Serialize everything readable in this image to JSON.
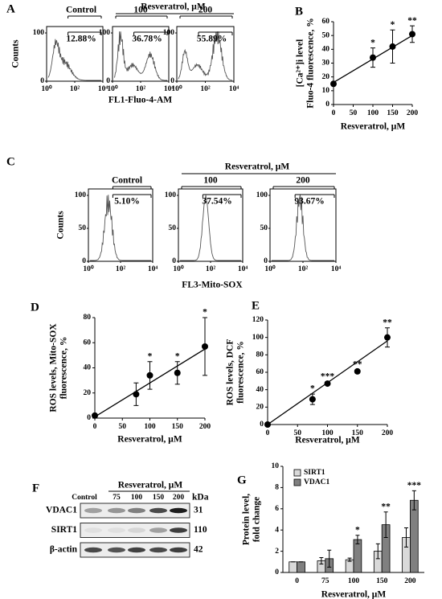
{
  "panels": [
    "A",
    "B",
    "C",
    "D",
    "E",
    "F",
    "G"
  ],
  "flow": [
    {
      "ylabel": "Counts",
      "xlabel": "FL1-Fluo-4-AM",
      "treatment": "Resveratrol, μM",
      "ylim": [
        0,
        100
      ],
      "yticks": [
        0,
        100
      ],
      "xlim": [
        1,
        10000
      ],
      "xticks": [
        {
          "value": 1,
          "label": "10⁰"
        },
        {
          "value": 100,
          "label": "10²"
        },
        {
          "value": 10000,
          "label": "10⁴"
        }
      ],
      "samples": [
        {
          "label": "Control",
          "gate": "12.88%"
        },
        {
          "label": "100",
          "gate": "36.78%"
        },
        {
          "label": "200",
          "gate": "55.89%"
        }
      ]
    },
    {
      "ylabel": "Counts",
      "xlabel": "FL3-Mito-SOX",
      "treatment": "Resveratrol, μM",
      "ylim": [
        0,
        100
      ],
      "yticks": [
        0,
        50,
        100
      ],
      "xlim": [
        1,
        10000
      ],
      "xticks": [
        {
          "value": 1,
          "label": "10⁰"
        },
        {
          "value": 100,
          "label": "10²"
        },
        {
          "value": 10000,
          "label": "10⁴"
        }
      ],
      "samples": [
        {
          "label": "Control",
          "gate": "5.10%"
        },
        {
          "label": "100",
          "gate": "37.54%"
        },
        {
          "label": "200",
          "gate": "93.67%"
        }
      ]
    }
  ],
  "chart_data": [
    {
      "type": "scatter",
      "ylabel": [
        "[Ca²⁺]i level",
        "Fluo-4 fluorescence, %"
      ],
      "xlabel": "Resveratrol, μM",
      "x": [
        0,
        100,
        150,
        200
      ],
      "values": [
        15,
        34,
        42,
        51
      ],
      "errors": [
        1,
        7,
        12,
        6
      ],
      "significance": [
        null,
        "*",
        "*",
        "**"
      ],
      "trend": {
        "x": [
          0,
          200
        ],
        "values": [
          16,
          50
        ]
      },
      "xlim": [
        0,
        200
      ],
      "xticks": [
        0,
        50,
        100,
        150,
        200
      ],
      "ylim": [
        0,
        60
      ],
      "yticks": [
        0,
        10,
        20,
        30,
        40,
        50,
        60
      ],
      "color": "#000000"
    },
    {
      "type": "scatter",
      "ylabel": [
        "ROS levels, Mito-SOX",
        "fluorescence, %"
      ],
      "xlabel": "Resveratrol, μM",
      "x": [
        0,
        75,
        100,
        150,
        200
      ],
      "values": [
        2,
        19,
        34,
        36,
        57
      ],
      "errors": [
        1,
        9,
        11,
        9,
        23
      ],
      "significance": [
        null,
        null,
        "*",
        "*",
        "*"
      ],
      "trend": {
        "x": [
          0,
          200
        ],
        "values": [
          1,
          55
        ]
      },
      "xlim": [
        0,
        200
      ],
      "xticks": [
        0,
        50,
        100,
        150,
        200
      ],
      "ylim": [
        0,
        80
      ],
      "yticks": [
        0,
        20,
        40,
        60,
        80
      ],
      "color": "#000000"
    },
    {
      "type": "scatter",
      "ylabel": [
        "ROS levels, DCF",
        "fluorescence, %"
      ],
      "xlabel": "Resveratrol, μM",
      "x": [
        0,
        75,
        100,
        150,
        200
      ],
      "values": [
        0,
        29,
        47,
        61,
        100
      ],
      "errors": [
        1,
        6,
        2,
        2,
        11
      ],
      "significance": [
        null,
        "*",
        "***",
        "**",
        "**"
      ],
      "trend": {
        "x": [
          0,
          200
        ],
        "values": [
          0,
          96
        ]
      },
      "xlim": [
        0,
        200
      ],
      "xticks": [
        0,
        50,
        100,
        150,
        200
      ],
      "ylim": [
        0,
        120
      ],
      "yticks": [
        0,
        20,
        40,
        60,
        80,
        100,
        120
      ],
      "color": "#000000"
    },
    {
      "type": "bar",
      "ylabel": [
        "Protein level,",
        "fold change"
      ],
      "xlabel": "Resveratrol, μM",
      "categories": [
        "0",
        "75",
        "100",
        "150",
        "200"
      ],
      "series": [
        {
          "name": "SIRT1",
          "color": "#d9d9d9",
          "values": [
            1.0,
            1.1,
            1.2,
            2.0,
            3.3
          ],
          "errors": [
            0,
            0.3,
            0.15,
            0.7,
            0.9
          ],
          "significance": [
            null,
            null,
            null,
            null,
            null
          ]
        },
        {
          "name": "VDAC1",
          "color": "#808080",
          "values": [
            1.0,
            1.3,
            3.1,
            4.5,
            6.8
          ],
          "errors": [
            0,
            0.8,
            0.4,
            1.2,
            0.9
          ],
          "significance": [
            null,
            null,
            "*",
            "**",
            "***"
          ]
        }
      ],
      "ylim": [
        0,
        10
      ],
      "yticks": [
        0,
        2,
        4,
        6,
        8,
        10
      ],
      "legend": "upper left"
    }
  ],
  "blot": {
    "control": "Control",
    "treatment": "Resveratrol, μM",
    "lanes": [
      "75",
      "100",
      "150",
      "200"
    ],
    "unit": "kDa",
    "rows": [
      {
        "protein": "VDAC1",
        "kda": "31"
      },
      {
        "protein": "SIRT1",
        "kda": "110"
      },
      {
        "protein": "β-actin",
        "kda": "42"
      }
    ]
  }
}
